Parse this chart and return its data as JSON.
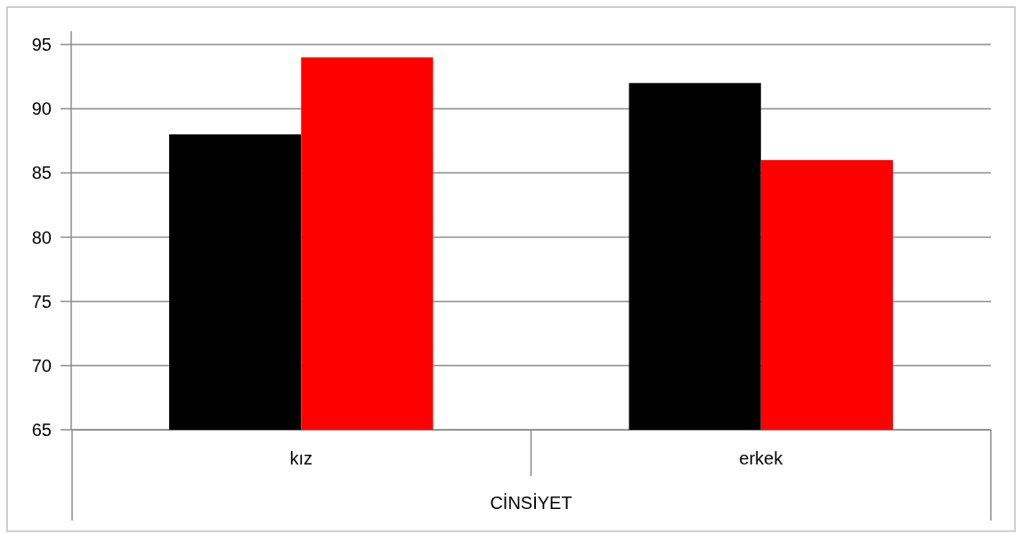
{
  "chart_data": {
    "type": "bar",
    "xlabel": "CİNSİYET",
    "categories": [
      "kız",
      "erkek"
    ],
    "series": [
      {
        "color": "#000000",
        "values": [
          88,
          92
        ]
      },
      {
        "color": "#ff0000",
        "values": [
          94,
          86
        ]
      }
    ],
    "ylim": [
      65,
      95
    ],
    "yticks": [
      65,
      70,
      75,
      80,
      85,
      90,
      95
    ],
    "grid": "y"
  }
}
